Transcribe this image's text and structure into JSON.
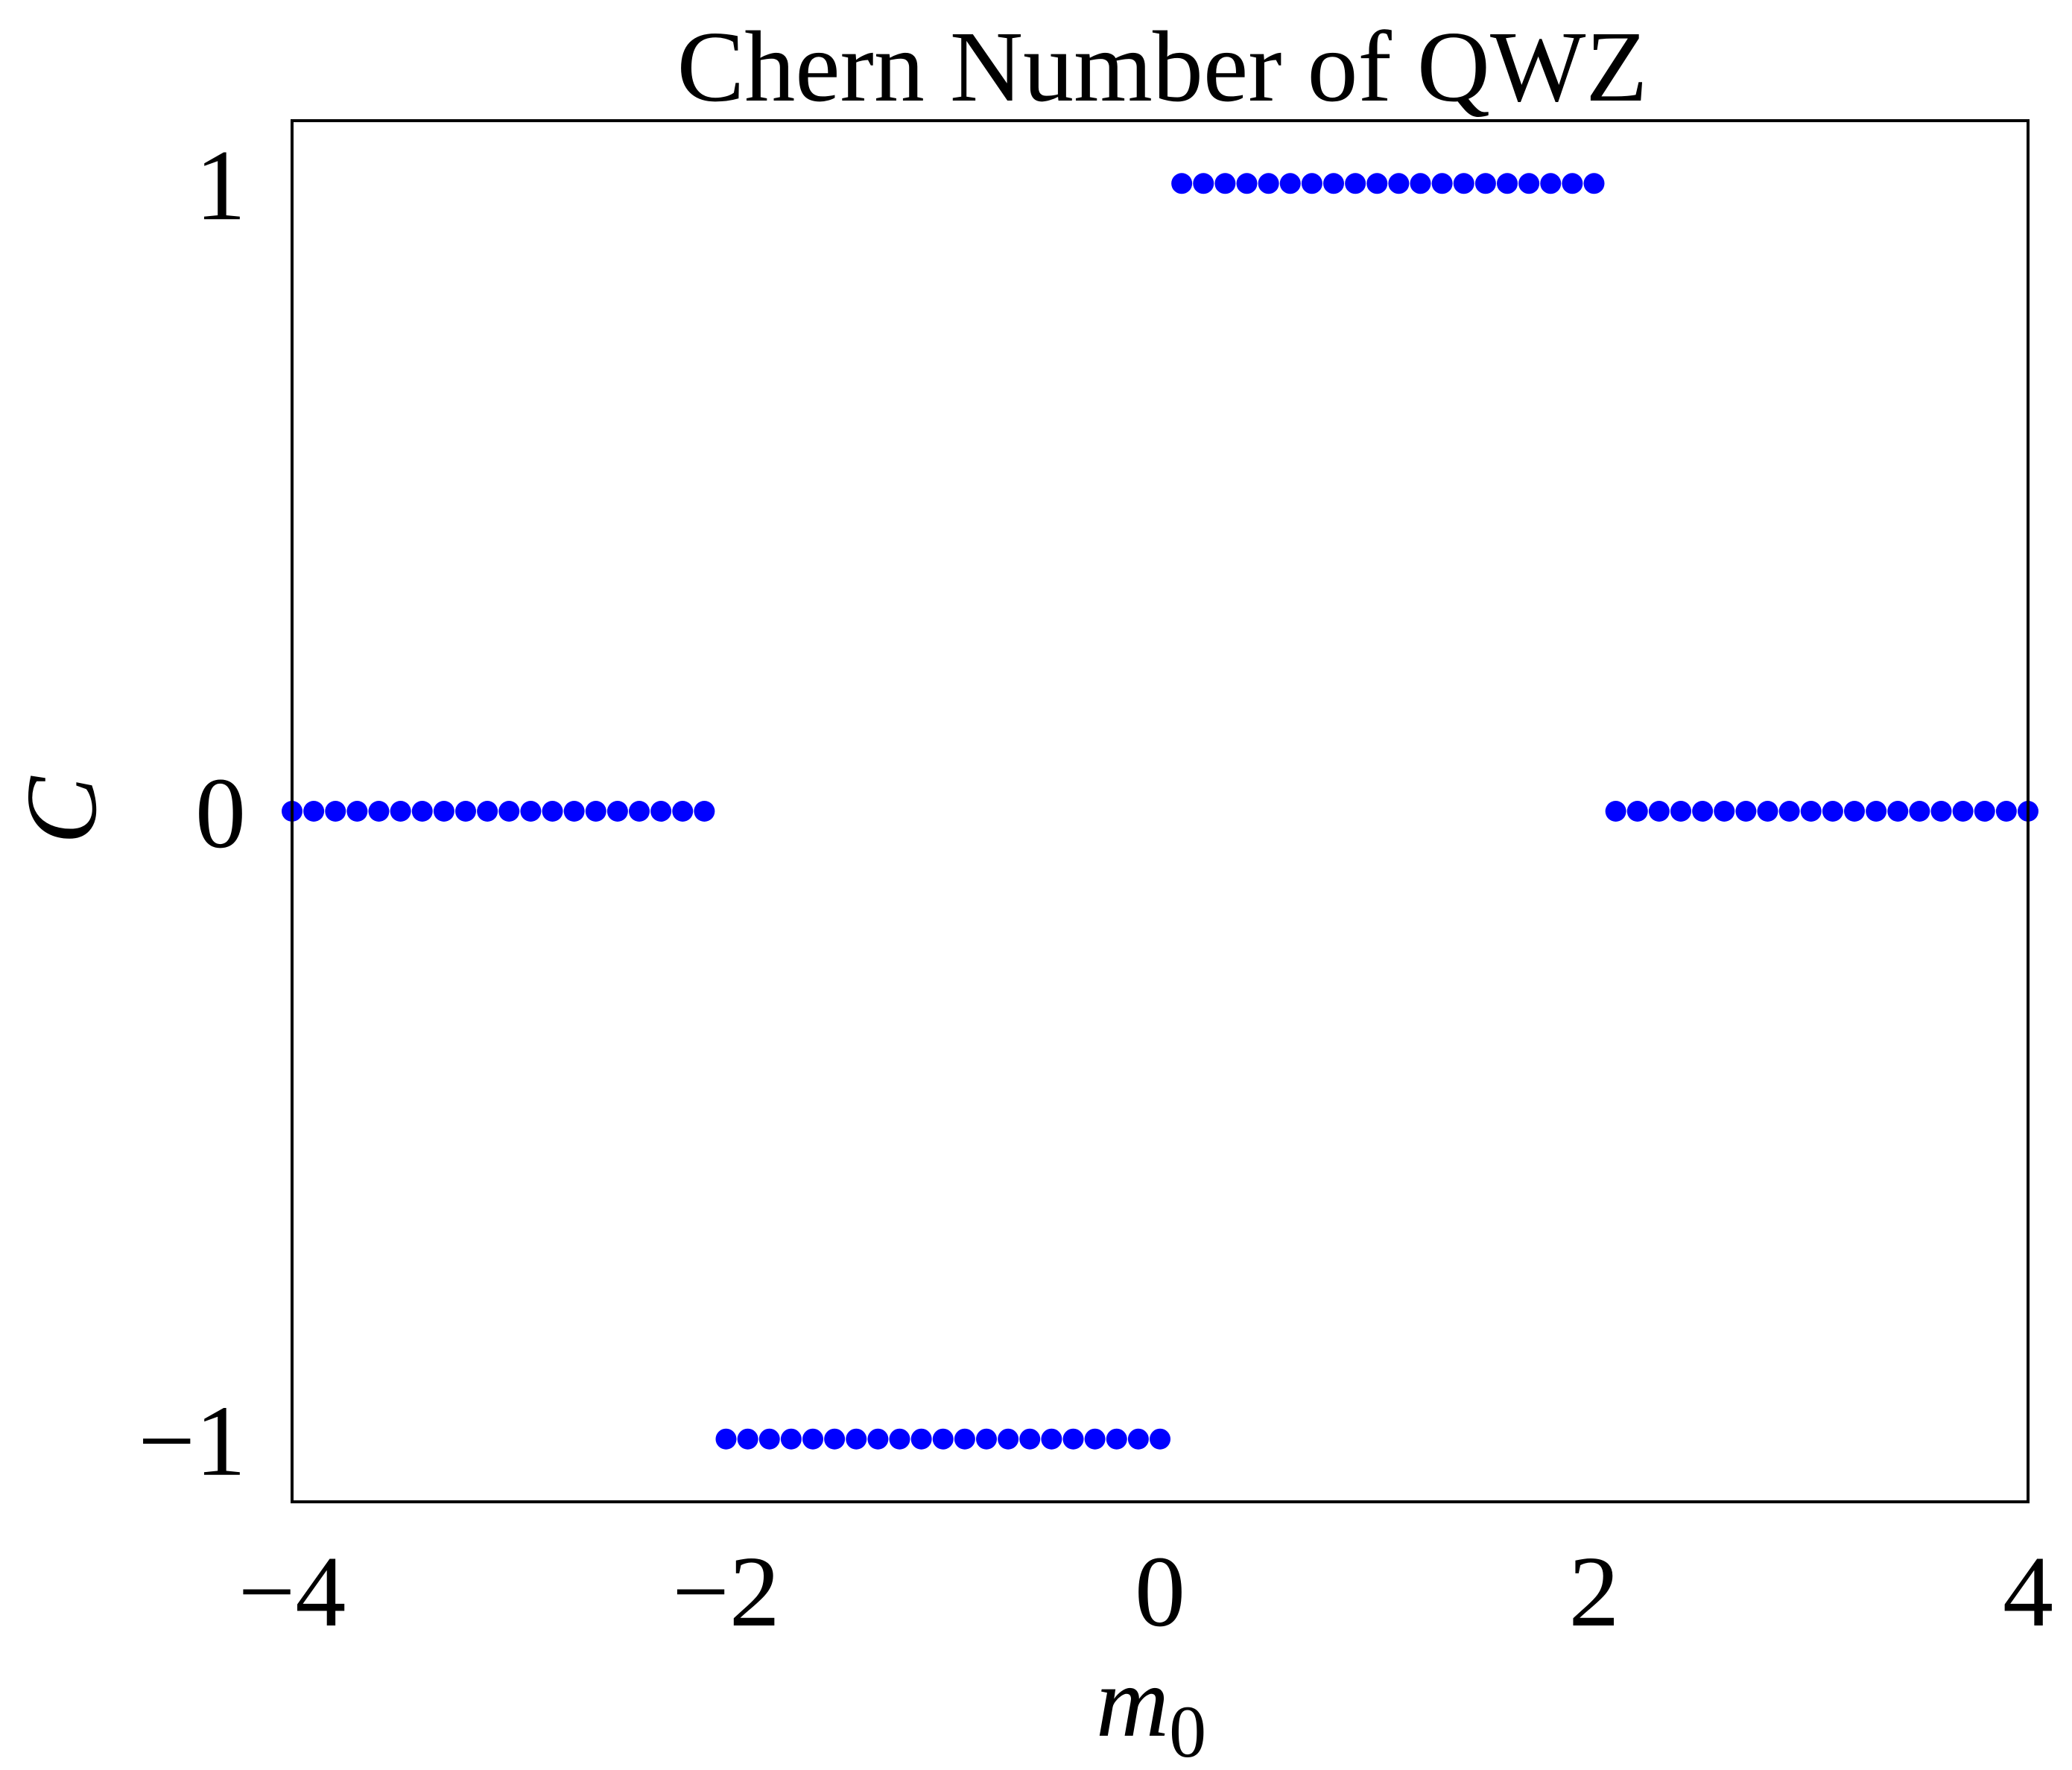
{
  "chart_data": {
    "type": "scatter",
    "title": "Chern Number of QWZ",
    "xlabel": "m",
    "xlabel_subscript": "0",
    "ylabel": "C",
    "xlim": [
      -4,
      4
    ],
    "ylim": [
      -1.1,
      1.1
    ],
    "xticks": [
      -4,
      -2,
      0,
      2,
      4
    ],
    "xtick_labels": [
      "−4",
      "−2",
      "0",
      "2",
      "4"
    ],
    "yticks": [
      -1,
      0,
      1
    ],
    "ytick_labels": [
      "−1",
      "0",
      "1"
    ],
    "grid": false,
    "marker_color": "#0000ff",
    "series": [
      {
        "x": [
          -4.0,
          -3.9,
          -3.8,
          -3.7,
          -3.6,
          -3.5,
          -3.4,
          -3.3,
          -3.2,
          -3.1,
          -3.0,
          -2.9,
          -2.8,
          -2.7,
          -2.6,
          -2.5,
          -2.4,
          -2.3,
          -2.2,
          -2.1,
          -2.0,
          -1.9,
          -1.8,
          -1.7,
          -1.6,
          -1.5,
          -1.4,
          -1.3,
          -1.2,
          -1.1,
          -1.0,
          -0.9,
          -0.8,
          -0.7,
          -0.6,
          -0.5,
          -0.4,
          -0.3,
          -0.2,
          -0.1,
          0.0,
          0.1,
          0.2,
          0.3,
          0.4,
          0.5,
          0.6,
          0.7,
          0.8,
          0.9,
          1.0,
          1.1,
          1.2,
          1.3,
          1.4,
          1.5,
          1.6,
          1.7,
          1.8,
          1.9,
          2.0,
          2.1,
          2.2,
          2.3,
          2.4,
          2.5,
          2.6,
          2.7,
          2.8,
          2.9,
          3.0,
          3.1,
          3.2,
          3.3,
          3.4,
          3.5,
          3.6,
          3.7,
          3.8,
          3.9,
          4.0
        ],
        "y": [
          0,
          0,
          0,
          0,
          0,
          0,
          0,
          0,
          0,
          0,
          0,
          0,
          0,
          0,
          0,
          0,
          0,
          0,
          0,
          0,
          -1,
          -1,
          -1,
          -1,
          -1,
          -1,
          -1,
          -1,
          -1,
          -1,
          -1,
          -1,
          -1,
          -1,
          -1,
          -1,
          -1,
          -1,
          -1,
          -1,
          -1,
          1,
          1,
          1,
          1,
          1,
          1,
          1,
          1,
          1,
          1,
          1,
          1,
          1,
          1,
          1,
          1,
          1,
          1,
          1,
          1,
          0,
          0,
          0,
          0,
          0,
          0,
          0,
          0,
          0,
          0,
          0,
          0,
          0,
          0,
          0,
          0,
          0,
          0,
          0,
          0
        ]
      }
    ]
  }
}
